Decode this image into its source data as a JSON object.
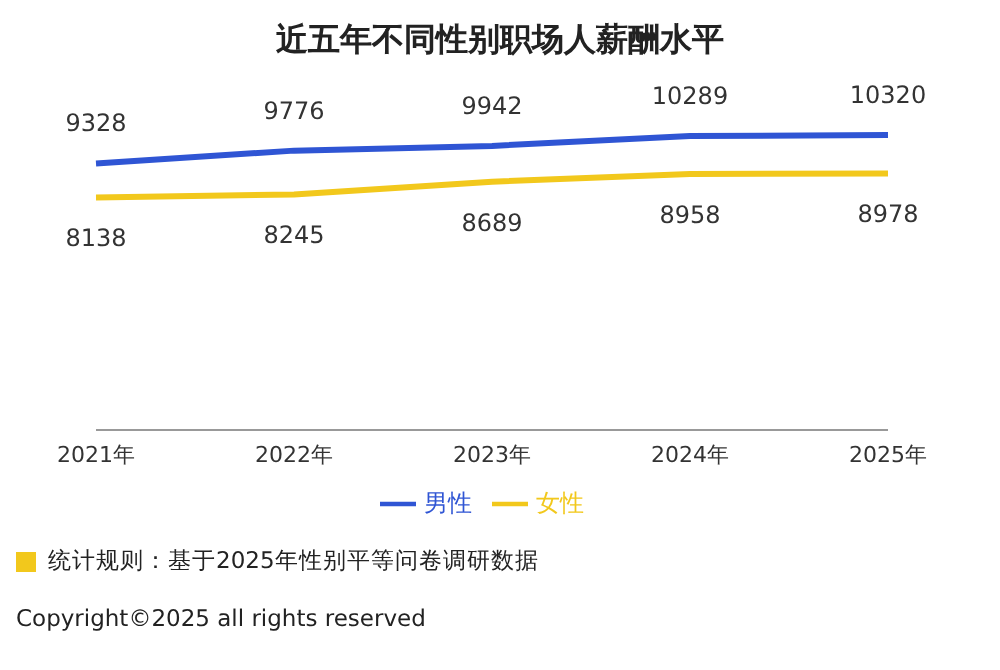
{
  "chart_data": {
    "type": "line",
    "title": "近五年不同性别职场人薪酬水平",
    "categories": [
      "2021年",
      "2022年",
      "2023年",
      "2024年",
      "2025年"
    ],
    "series": [
      {
        "name": "男性",
        "color": "#2f55d4",
        "values": [
          9328,
          9776,
          9942,
          10289,
          10320
        ]
      },
      {
        "name": "女性",
        "color": "#f2c81c",
        "values": [
          8138,
          8245,
          8689,
          8958,
          8978
        ]
      }
    ],
    "data_labels": true,
    "legend": "bottom",
    "marker": "none",
    "annotations": [
      "统计规则：基于2025年性别平等问卷调研数据",
      "Copyright©2025 all rights reserved"
    ]
  }
}
